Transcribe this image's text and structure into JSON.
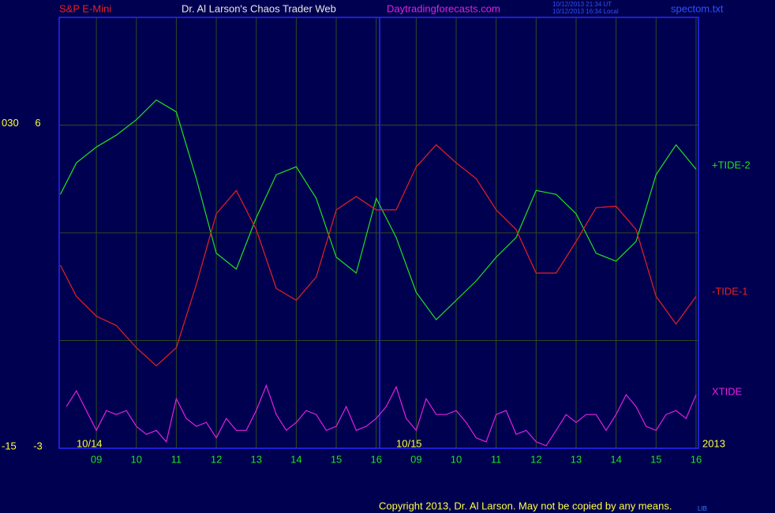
{
  "header": {
    "instrument": "S&P E-Mini",
    "site_title": "Dr. Al Larson's Chaos Trader Web",
    "url": "Daytradingforecasts.com",
    "timestamp_ut": "10/12/2013 21:34 UT",
    "timestamp_local": "10/12/2013 16:34 Local",
    "file": "spectom.txt"
  },
  "footer": {
    "copyright": "Copyright 2013, Dr. Al Larson. May not be copied by any means.",
    "mark": "LIB"
  },
  "chart_data": {
    "type": "line",
    "date_labels": [
      "10/14",
      "10/15"
    ],
    "year": "2013",
    "x": [
      0.1,
      0.5,
      1,
      1.5,
      2,
      2.5,
      3,
      3.5,
      4,
      4.5,
      5,
      5.5,
      6,
      6.5,
      7,
      7.5,
      8,
      8.5,
      9,
      9.5,
      10,
      10.5,
      11,
      11.5,
      12,
      12.5,
      13,
      13.5,
      14,
      14.5,
      15,
      15.5,
      16
    ],
    "xlim": [
      0.07,
      16.06
    ],
    "xticks": [
      {
        "value": 1,
        "label": "09"
      },
      {
        "value": 2,
        "label": "10"
      },
      {
        "value": 3,
        "label": "11"
      },
      {
        "value": 4,
        "label": "12"
      },
      {
        "value": 5,
        "label": "13"
      },
      {
        "value": 6,
        "label": "14"
      },
      {
        "value": 7,
        "label": "15"
      },
      {
        "value": 8,
        "label": "16"
      },
      {
        "value": 9,
        "label": "09"
      },
      {
        "value": 10,
        "label": "10"
      },
      {
        "value": 11,
        "label": "11"
      },
      {
        "value": 12,
        "label": "12"
      },
      {
        "value": 13,
        "label": "13"
      },
      {
        "value": 14,
        "label": "14"
      },
      {
        "value": 15,
        "label": "15"
      },
      {
        "value": 16,
        "label": "16"
      }
    ],
    "ylim": [
      -3,
      9
    ],
    "yticks": [
      -3,
      {
        "value": 0,
        "label": null
      },
      {
        "value": 3,
        "label": null
      },
      6
    ],
    "y2lim": [
      -15,
      45
    ],
    "y2ticks": [
      -15,
      {
        "value": 30,
        "label": "030"
      }
    ],
    "grid": true,
    "series": [
      {
        "name": "+TIDE-2",
        "color": "#20e020",
        "values": [
          4.07,
          4.95,
          5.39,
          5.72,
          6.15,
          6.7,
          6.37,
          4.51,
          2.43,
          1.99,
          3.42,
          4.62,
          4.84,
          3.96,
          2.32,
          1.88,
          3.96,
          2.87,
          1.34,
          0.58,
          1.12,
          1.66,
          2.32,
          2.87,
          4.18,
          4.07,
          3.53,
          2.43,
          2.21,
          2.76,
          4.62,
          5.45,
          4.77
        ]
      },
      {
        "name": "-TIDE-1",
        "color": "#e82020",
        "values": [
          2.1,
          1.23,
          0.68,
          0.42,
          -0.2,
          -0.7,
          -0.2,
          1.56,
          3.53,
          4.18,
          3.09,
          1.45,
          1.12,
          1.77,
          3.64,
          4.01,
          3.64,
          3.64,
          4.84,
          5.45,
          4.95,
          4.51,
          3.64,
          3.09,
          1.88,
          1.88,
          2.76,
          3.7,
          3.74,
          3.09,
          1.23,
          0.46,
          1.23
        ]
      },
      {
        "name": "XTIDE",
        "color": "#e020e0",
        "x": [
          0.25,
          0.5,
          0.75,
          1,
          1.25,
          1.5,
          1.75,
          2,
          2.25,
          2.5,
          2.75,
          3,
          3.25,
          3.5,
          3.75,
          4,
          4.25,
          4.5,
          4.75,
          5,
          5.25,
          5.5,
          5.75,
          6,
          6.25,
          6.5,
          6.75,
          7,
          7.25,
          7.5,
          7.75,
          8,
          8.25,
          8.5,
          8.75,
          9,
          9.25,
          9.5,
          9.75,
          10,
          10.25,
          10.5,
          10.75,
          11,
          11.25,
          11.5,
          11.75,
          12,
          12.25,
          12.5,
          12.75,
          13,
          13.25,
          13.5,
          13.75,
          14,
          14.25,
          14.5,
          14.75,
          15,
          15.25,
          15.5,
          15.75,
          16
        ],
        "values": [
          -1.84,
          -1.4,
          -1.95,
          -2.5,
          -1.95,
          -2.06,
          -1.95,
          -2.39,
          -2.61,
          -2.5,
          -2.82,
          -1.62,
          -2.17,
          -2.39,
          -2.28,
          -2.71,
          -2.17,
          -2.5,
          -2.5,
          -1.95,
          -1.25,
          -2.06,
          -2.5,
          -2.28,
          -1.95,
          -2.06,
          -2.5,
          -2.39,
          -1.84,
          -2.5,
          -2.39,
          -2.17,
          -1.84,
          -1.29,
          -2.17,
          -2.5,
          -1.62,
          -2.06,
          -2.06,
          -1.95,
          -2.28,
          -2.71,
          -2.82,
          -2.06,
          -1.95,
          -2.61,
          -2.5,
          -2.82,
          -2.93,
          -2.5,
          -2.06,
          -2.28,
          -2.06,
          -2.06,
          -2.5,
          -2.06,
          -1.51,
          -1.84,
          -2.39,
          -2.5,
          -2.06,
          -1.95,
          -2.17,
          -1.51
        ]
      }
    ]
  }
}
